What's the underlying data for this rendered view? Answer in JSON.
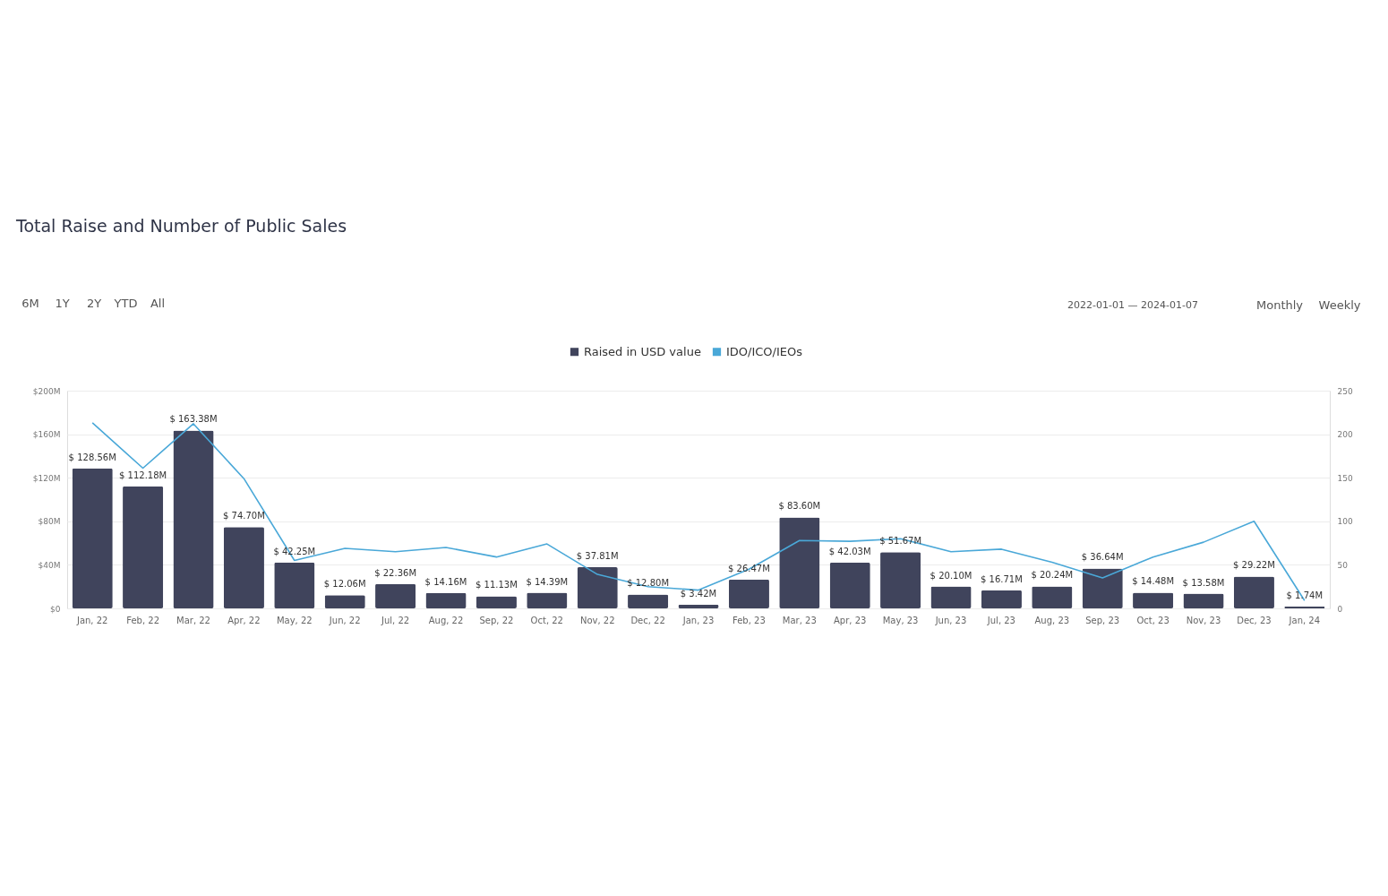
{
  "chart_data": {
    "type": "bar",
    "title": "Total Raise and Number of Public Sales",
    "categories": [
      "Jan, 22",
      "Feb, 22",
      "Mar, 22",
      "Apr, 22",
      "May, 22",
      "Jun, 22",
      "Jul, 22",
      "Aug, 22",
      "Sep, 22",
      "Oct, 22",
      "Nov, 22",
      "Dec, 22",
      "Jan, 23",
      "Feb, 23",
      "Mar, 23",
      "Apr, 23",
      "May, 23",
      "Jun, 23",
      "Jul, 23",
      "Aug, 23",
      "Sep, 23",
      "Oct, 23",
      "Nov, 23",
      "Dec, 23",
      "Jan, 24"
    ],
    "series": [
      {
        "name": "Raised in USD value",
        "color": "#40445c",
        "values": [
          128.56,
          112.18,
          163.38,
          74.7,
          42.25,
          12.06,
          22.36,
          14.16,
          11.13,
          14.39,
          37.81,
          12.8,
          3.42,
          26.47,
          83.6,
          42.03,
          51.67,
          20.1,
          16.71,
          20.24,
          36.64,
          14.48,
          13.58,
          29.22,
          1.74
        ],
        "value_labels": [
          "$ 128.56M",
          "$ 112.18M",
          "$ 163.38M",
          "$ 74.70M",
          "$ 42.25M",
          "$ 12.06M",
          "$ 22.36M",
          "$ 14.16M",
          "$ 11.13M",
          "$ 14.39M",
          "$ 37.81M",
          "$ 12.80M",
          "$ 3.42M",
          "$ 26.47M",
          "$ 83.60M",
          "$ 42.03M",
          "$ 51.67M",
          "$ 20.10M",
          "$ 16.71M",
          "$ 20.24M",
          "$ 36.64M",
          "$ 14.48M",
          "$ 13.58M",
          "$ 29.22M",
          "$ 1.74M"
        ]
      },
      {
        "name": "IDO/ICO/IEOs",
        "type": "line",
        "axis": "y2",
        "color": "#4aa8d8",
        "values": [
          213,
          161,
          212,
          149,
          55,
          69,
          65,
          70,
          59,
          74,
          39,
          25,
          21,
          45,
          78,
          77,
          80,
          65,
          68,
          53,
          35,
          59,
          76,
          100,
          9
        ]
      }
    ],
    "ylim": [
      0,
      200
    ],
    "yticks": [
      {
        "value": 0,
        "label": "$0"
      },
      {
        "value": 40,
        "label": "$40M"
      },
      {
        "value": 80,
        "label": "$80M"
      },
      {
        "value": 120,
        "label": "$120M"
      },
      {
        "value": 160,
        "label": "$160M"
      },
      {
        "value": 200,
        "label": "$200M"
      }
    ],
    "y2lim": [
      0,
      250
    ],
    "y2ticks": [
      0,
      50,
      100,
      150,
      200,
      250
    ],
    "grid": "y",
    "legend": "top",
    "marker": "none",
    "line_style": "solid",
    "annotations": [
      "6M",
      "1Y",
      "2Y",
      "YTD",
      "All",
      "2022-01-01 — 2024-01-07",
      "Monthly",
      "Weekly"
    ]
  }
}
